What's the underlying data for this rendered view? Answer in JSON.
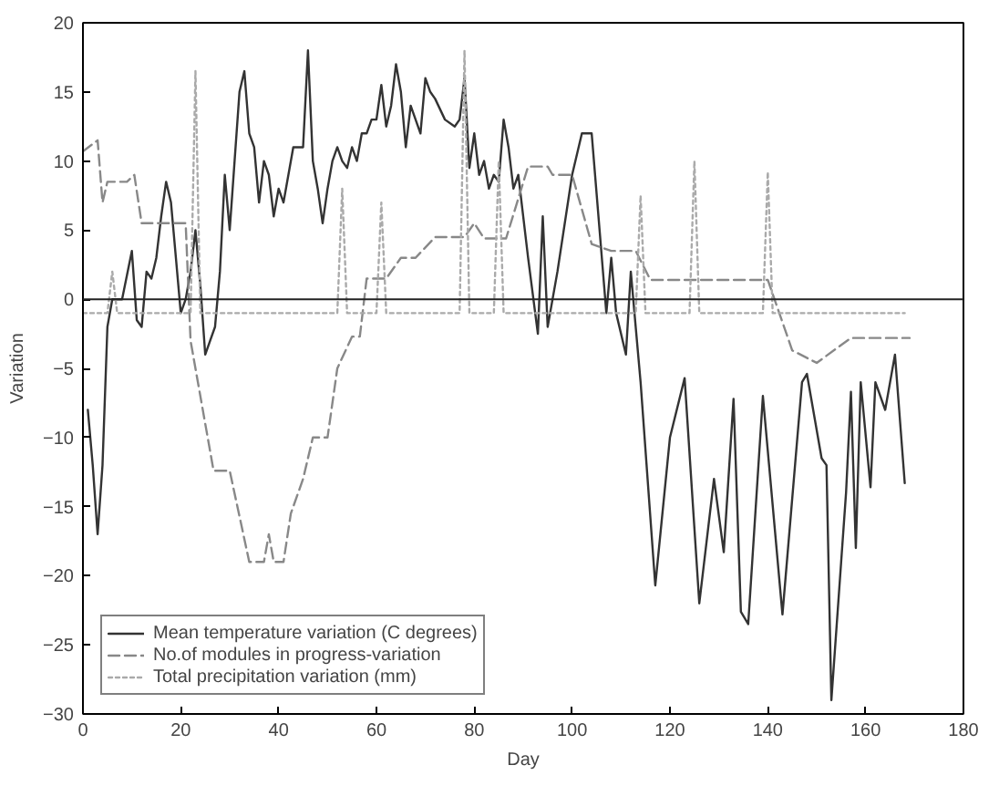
{
  "chart_data": {
    "type": "line",
    "xlabel": "Day",
    "ylabel": "Variation",
    "xlim": [
      0,
      180
    ],
    "ylim": [
      -30,
      20
    ],
    "xticks": [
      0,
      20,
      40,
      60,
      80,
      100,
      120,
      140,
      160,
      180
    ],
    "yticks": [
      -30,
      -25,
      -20,
      -15,
      -10,
      -5,
      0,
      5,
      10,
      15,
      20
    ],
    "grid": false,
    "legend": "bottom left",
    "ref_lines": [
      {
        "axis": "y",
        "value": 0,
        "color": "#222222",
        "line_style": "solid"
      }
    ],
    "series": [
      {
        "name": "Mean temperature variation (C degrees)",
        "color": "#333333",
        "line_style": "solid",
        "x": [
          1,
          2,
          3,
          4,
          5,
          6,
          8,
          10,
          11,
          12,
          13,
          14,
          15,
          16,
          17,
          18,
          19,
          20,
          21,
          22,
          23,
          24,
          25,
          26,
          27,
          28,
          29,
          30,
          31,
          32,
          33,
          34,
          35,
          36,
          37,
          38,
          39,
          40,
          41,
          43,
          45,
          46,
          47,
          48,
          49,
          50,
          51,
          52,
          53,
          54,
          55,
          56,
          57,
          58,
          59,
          60,
          61,
          62,
          63,
          64,
          65,
          66,
          67,
          68,
          69,
          70,
          71,
          72,
          74,
          76,
          77,
          78,
          79,
          80,
          81,
          82,
          83,
          84,
          85,
          86,
          87,
          88,
          89,
          91,
          93,
          94,
          95,
          97,
          100,
          102,
          104,
          107,
          108,
          109,
          111,
          112,
          113,
          114,
          117,
          120,
          123,
          126,
          129,
          131,
          133,
          134.5,
          136,
          139,
          143,
          147,
          148,
          151,
          152,
          153,
          155,
          156,
          157,
          158,
          159,
          161,
          162,
          164,
          166,
          168
        ],
        "values": [
          -8,
          -12,
          -17,
          -12,
          -2,
          0,
          0,
          3.5,
          -1.5,
          -2,
          2,
          1.5,
          3,
          6,
          8.5,
          7,
          3,
          -1,
          0,
          2,
          5,
          1,
          -4,
          -3,
          -2,
          2,
          9,
          5,
          10,
          15,
          16.5,
          12,
          11,
          7,
          10,
          9,
          6,
          8,
          7,
          11,
          11,
          18,
          10,
          8,
          5.5,
          8,
          10,
          11,
          10,
          9.5,
          11,
          10,
          12,
          12,
          13,
          13,
          15.5,
          12.5,
          14,
          17,
          15,
          11,
          14,
          13,
          12,
          16,
          15,
          14.5,
          13,
          12.5,
          13,
          16,
          9.5,
          12,
          9,
          10,
          8,
          9,
          8.5,
          13,
          11,
          8,
          9,
          3,
          -2.5,
          6,
          -2,
          2,
          9,
          12,
          12,
          -1,
          3,
          -1,
          -4,
          2,
          -2,
          -6,
          -20.7,
          -10,
          -5.7,
          -22,
          -13,
          -18.3,
          -7.2,
          -22.6,
          -23.5,
          -7,
          -22.8,
          -6,
          -5.4,
          -11.5,
          -12,
          -29,
          -19,
          -14,
          -6.7,
          -18,
          -6,
          -13.6,
          -6,
          -8,
          -4,
          -13.3
        ]
      },
      {
        "name": "No.of modules in progress-variation",
        "color": "#888888",
        "line_style": "dashed",
        "x": [
          0,
          3,
          4,
          5,
          9,
          10.5,
          12,
          21,
          22,
          26.7,
          30,
          34,
          37,
          38,
          39,
          41,
          42.5,
          45,
          47,
          50,
          52,
          55,
          56.6,
          58,
          62,
          65,
          68,
          72,
          78,
          80,
          82,
          86.5,
          91,
          95,
          96,
          100,
          104,
          108,
          113,
          116,
          117,
          140,
          145,
          150,
          157,
          169
        ],
        "values": [
          10.7,
          11.5,
          7,
          8.5,
          8.5,
          9,
          5.5,
          5.5,
          -3,
          -12.4,
          -12.4,
          -19,
          -19,
          -17,
          -19,
          -19,
          -15.5,
          -13,
          -10,
          -10,
          -5,
          -2.7,
          -2.7,
          1.5,
          1.5,
          3,
          3,
          4.5,
          4.5,
          5.5,
          4.4,
          4.4,
          9.6,
          9.6,
          9,
          9,
          4,
          3.5,
          3.5,
          1.4,
          1.4,
          1.4,
          -3.7,
          -4.6,
          -2.8,
          -2.8
        ]
      },
      {
        "name": "Total precipitation variation (mm)",
        "color": "#aaaaaa",
        "line_style": "dotted",
        "x": [
          0,
          5,
          6,
          7,
          22,
          23,
          24,
          52,
          53,
          54,
          60,
          61,
          62,
          77,
          78,
          79,
          84,
          85,
          86,
          113,
          114,
          115,
          124,
          125,
          126,
          139,
          140,
          141,
          168
        ],
        "values": [
          -1,
          -1,
          2,
          -1,
          -1,
          16.5,
          -1,
          -1,
          8,
          -1,
          -1,
          7,
          -1,
          -1,
          18,
          -1,
          -1,
          10,
          -1,
          -1,
          7.5,
          -1,
          -1,
          10,
          -1,
          -1,
          9.2,
          -1,
          -1
        ]
      }
    ]
  }
}
